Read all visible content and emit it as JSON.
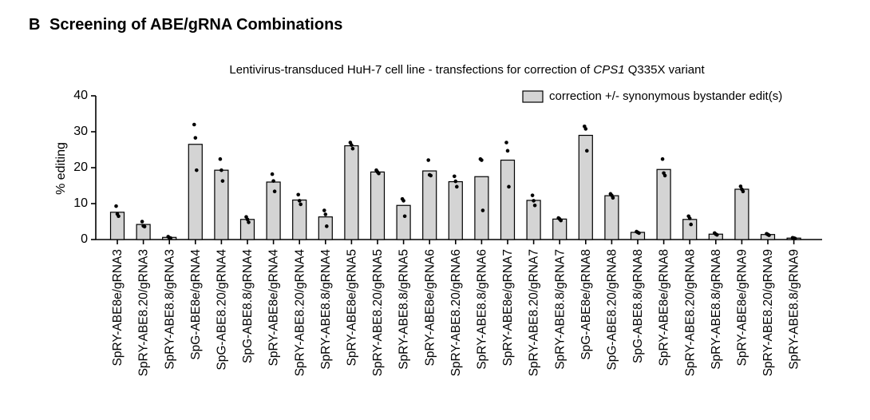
{
  "panel": {
    "letter": "B",
    "title": "Screening of ABE/gRNA Combinations"
  },
  "chart_data": {
    "type": "bar",
    "title_parts": [
      "Lentivirus-transduced HuH-7 cell line - transfections for correction of ",
      "CPS1",
      " Q335X variant"
    ],
    "xlabel": "",
    "ylabel": "% editing",
    "ylim": [
      0,
      40
    ],
    "yticks": [
      0,
      10,
      20,
      30,
      40
    ],
    "legend": {
      "label": "correction +/- synonymous bystander edit(s)",
      "position": "top-right"
    },
    "categories": [
      "SpRY-ABE8e/gRNA3",
      "SpRY-ABE8.20/gRNA3",
      "SpRY-ABE8.8/gRNA3",
      "SpG-ABE8e/gRNA4",
      "SpG-ABE8.20/gRNA4",
      "SpG-ABE8.8/gRNA4",
      "SpRY-ABE8e/gRNA4",
      "SpRY-ABE8.20/gRNA4",
      "SpRY-ABE8.8/gRNA4",
      "SpRY-ABE8e/gRNA5",
      "SpRY-ABE8.20/gRNA5",
      "SpRY-ABE8.8/gRNA5",
      "SpRY-ABE8e/gRNA6",
      "SpRY-ABE8.20/gRNA6",
      "SpRY-ABE8.8/gRNA6",
      "SpRY-ABE8e/gRNA7",
      "SpRY-ABE8.20/gRNA7",
      "SpRY-ABE8.8/gRNA7",
      "SpG-ABE8e/gRNA8",
      "SpG-ABE8.20/gRNA8",
      "SpG-ABE8.8/gRNA8",
      "SpRY-ABE8e/gRNA8",
      "SpRY-ABE8.20/gRNA8",
      "SpRY-ABE8.8/gRNA8",
      "SpRY-ABE8e/gRNA9",
      "SpRY-ABE8.20/gRNA9",
      "SpRY-ABE8.8/gRNA9"
    ],
    "values": [
      7.6,
      4.2,
      0.6,
      26.5,
      19.3,
      5.6,
      16.0,
      11.0,
      6.3,
      26.1,
      18.8,
      9.5,
      19.1,
      16.1,
      17.5,
      22.1,
      10.9,
      5.7,
      29.0,
      12.2,
      2.0,
      19.5,
      5.6,
      1.5,
      14.0,
      1.4,
      0.4
    ],
    "replicates": [
      [
        9.3,
        7.1,
        6.5
      ],
      [
        5.0,
        3.8,
        3.6
      ],
      [
        0.8,
        0.5,
        0.4
      ],
      [
        32.0,
        28.3,
        19.3
      ],
      [
        22.4,
        19.3,
        16.3
      ],
      [
        6.3,
        5.6,
        4.8
      ],
      [
        18.2,
        16.3,
        13.4
      ],
      [
        12.5,
        10.8,
        9.8
      ],
      [
        8.1,
        7.0,
        3.7
      ],
      [
        27.0,
        26.3,
        25.3
      ],
      [
        19.3,
        18.8,
        18.4
      ],
      [
        11.3,
        10.8,
        6.5
      ],
      [
        22.1,
        18.0,
        17.8
      ],
      [
        17.6,
        16.2,
        14.7
      ],
      [
        22.4,
        22.1,
        8.1
      ],
      [
        27.0,
        24.7,
        14.7
      ],
      [
        12.3,
        10.8,
        9.5
      ],
      [
        6.0,
        5.7,
        5.3
      ],
      [
        31.5,
        30.8,
        24.7
      ],
      [
        12.7,
        12.3,
        11.6
      ],
      [
        2.2,
        2.0,
        1.8
      ],
      [
        22.4,
        18.5,
        17.8
      ],
      [
        6.5,
        5.9,
        4.2
      ],
      [
        1.8,
        1.5,
        1.3
      ],
      [
        14.8,
        14.0,
        13.4
      ],
      [
        1.6,
        1.4,
        1.2
      ],
      [
        0.5,
        0.4,
        0.3
      ]
    ],
    "grid": false
  }
}
